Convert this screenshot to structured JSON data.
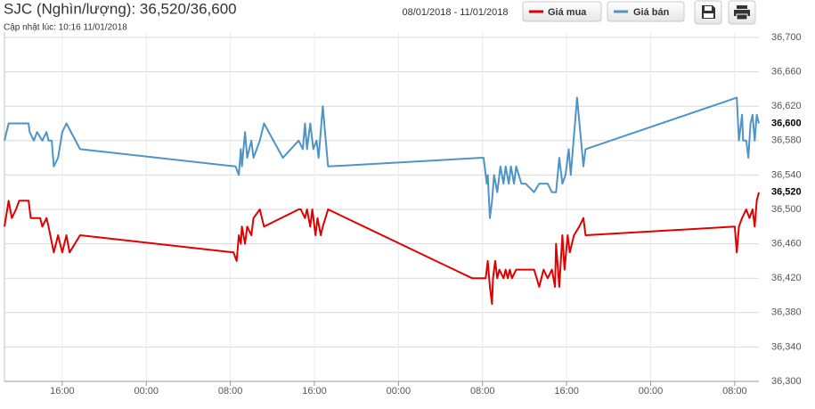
{
  "chart_data": {
    "type": "line",
    "title": "SJC (Nghìn/lượng): 36,520/36,600",
    "subtitle": "Cập nhật lúc: 10:16 11/01/2018",
    "date_range": "08/01/2018 - 11/01/2018",
    "series": [
      {
        "name": "Giá mua",
        "color": "#e00000",
        "x": [
          10.5,
          10.9,
          11.2,
          11.6,
          11.9,
          12.8,
          13.0,
          13.5,
          13.9,
          14.1,
          14.5,
          14.7,
          15.2,
          15.6,
          16.0,
          16.2,
          16.4,
          16.7,
          17.7,
          32.3,
          32.6,
          32.8,
          33.0,
          33.1,
          33.4,
          33.6,
          34.0,
          34.2,
          34.8,
          35.2,
          38.5,
          38.7,
          39.1,
          39.3,
          39.6,
          39.8,
          40.1,
          40.3,
          40.6,
          40.8,
          41.3,
          55.0,
          56.3,
          56.5,
          56.7,
          56.9,
          57.0,
          57.2,
          57.4,
          57.6,
          58.0,
          58.2,
          58.4,
          58.6,
          58.8,
          59.2,
          60.9,
          61.4,
          61.8,
          62.2,
          62.6,
          62.9,
          63.0,
          63.3,
          63.6,
          63.8,
          64.1,
          64.3,
          64.7,
          65.2,
          65.6,
          65.8,
          80.0,
          80.2,
          80.4,
          80.7,
          81.1,
          81.4,
          81.7,
          81.9,
          82.1,
          82.3
        ],
        "values": [
          36480,
          36510,
          36490,
          36500,
          36510,
          36510,
          36490,
          36490,
          36490,
          36480,
          36490,
          36480,
          36450,
          36470,
          36450,
          36460,
          36470,
          36450,
          36470,
          36450,
          36440,
          36470,
          36460,
          36480,
          36460,
          36480,
          36470,
          36490,
          36500,
          36480,
          36500,
          36500,
          36490,
          36500,
          36480,
          36500,
          36470,
          36490,
          36470,
          36480,
          36500,
          36420,
          36420,
          36440,
          36410,
          36390,
          36420,
          36440,
          36420,
          36430,
          36420,
          36430,
          36420,
          36430,
          36420,
          36430,
          36430,
          36410,
          36430,
          36420,
          36430,
          36410,
          36460,
          36410,
          36470,
          36430,
          36470,
          36450,
          36470,
          36480,
          36490,
          36470,
          36480,
          36450,
          36480,
          36490,
          36500,
          36490,
          36500,
          36480,
          36510,
          36520
        ]
      },
      {
        "name": "Giá bán",
        "color": "#4f94c6",
        "x": [
          10.5,
          10.9,
          11.3,
          12.8,
          12.9,
          13.3,
          13.6,
          14.1,
          14.5,
          14.7,
          15.0,
          15.2,
          15.6,
          16.0,
          16.4,
          17.7,
          32.5,
          32.8,
          33.0,
          33.1,
          33.4,
          33.6,
          34.0,
          34.2,
          34.8,
          35.2,
          37.0,
          38.5,
          38.9,
          39.1,
          39.3,
          39.6,
          39.9,
          40.2,
          40.4,
          40.8,
          41.3,
          55.8,
          56.1,
          56.4,
          56.5,
          56.7,
          56.9,
          57.1,
          57.4,
          57.7,
          58.0,
          58.2,
          58.5,
          58.7,
          59.0,
          59.2,
          59.7,
          60.1,
          60.9,
          61.4,
          62.2,
          62.6,
          63.0,
          63.3,
          63.6,
          63.9,
          64.2,
          64.4,
          65.0,
          65.6,
          65.8,
          80.2,
          80.4,
          80.7,
          80.8,
          81.1,
          81.3,
          81.5,
          81.7,
          81.9,
          82.1,
          82.3
        ],
        "values": [
          36580,
          36600,
          36600,
          36600,
          36590,
          36580,
          36590,
          36580,
          36590,
          36580,
          36580,
          36550,
          36560,
          36590,
          36600,
          36570,
          36550,
          36540,
          36570,
          36550,
          36590,
          36560,
          36580,
          36560,
          36580,
          36600,
          36560,
          36580,
          36570,
          36600,
          36570,
          36600,
          36570,
          36580,
          36560,
          36620,
          36550,
          36560,
          36560,
          36530,
          36540,
          36490,
          36510,
          36540,
          36520,
          36550,
          36530,
          36550,
          36530,
          36550,
          36530,
          36550,
          36530,
          36530,
          36520,
          36530,
          36530,
          36520,
          36520,
          36560,
          36530,
          36540,
          36570,
          36540,
          36630,
          36550,
          36570,
          36630,
          36580,
          36610,
          36580,
          36580,
          36560,
          36600,
          36610,
          36580,
          36610,
          36600
        ]
      }
    ],
    "current_labels": [
      {
        "value": 36600,
        "label": "36,600"
      },
      {
        "value": 36520,
        "label": "36,520"
      }
    ],
    "xlim": [
      10.5,
      82.3
    ],
    "xticks": [
      {
        "value": 16,
        "label": "16:00"
      },
      {
        "value": 24,
        "label": "00:00"
      },
      {
        "value": 32,
        "label": "08:00"
      },
      {
        "value": 40,
        "label": "16:00"
      },
      {
        "value": 48,
        "label": "00:00"
      },
      {
        "value": 56,
        "label": "08:00"
      },
      {
        "value": 64,
        "label": "16:00"
      },
      {
        "value": 72,
        "label": "00:00"
      },
      {
        "value": 80,
        "label": "08:00"
      }
    ],
    "ylim": [
      36300,
      36700
    ],
    "yticks": [
      {
        "value": 36300,
        "label": "36,300"
      },
      {
        "value": 36340,
        "label": "36,340"
      },
      {
        "value": 36380,
        "label": "36,380"
      },
      {
        "value": 36420,
        "label": "36,420"
      },
      {
        "value": 36460,
        "label": "36,460"
      },
      {
        "value": 36500,
        "label": "36,500"
      },
      {
        "value": 36540,
        "label": "36,540"
      },
      {
        "value": 36580,
        "label": "36,580"
      },
      {
        "value": 36620,
        "label": "36,620"
      },
      {
        "value": 36660,
        "label": "36,660"
      },
      {
        "value": 36700,
        "label": "36,700"
      }
    ],
    "grid": true
  }
}
